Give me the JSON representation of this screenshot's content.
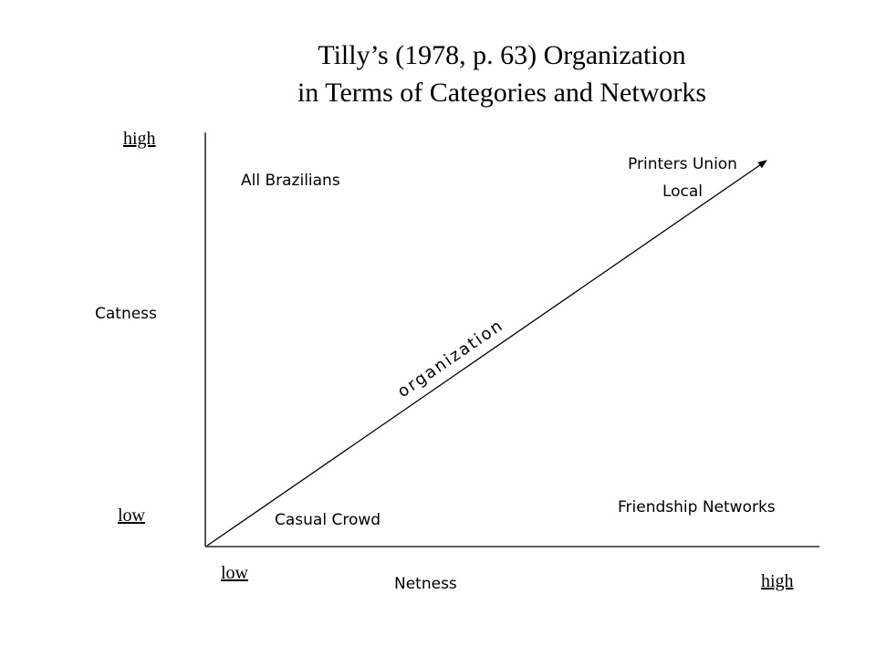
{
  "title": {
    "line1": "Tilly’s (1978, p. 63) Organization",
    "line2": "in Terms of Categories and Networks"
  },
  "y_axis": {
    "label": "Catness",
    "high": "high",
    "low": "low"
  },
  "x_axis": {
    "label": "Netness",
    "low": "low",
    "high": "high"
  },
  "quadrants": {
    "top_left": "All Brazilians",
    "top_right_line1": "Printers Union",
    "top_right_line2": "Local",
    "bottom_left": "Casual Crowd",
    "bottom_right": "Friendship Networks"
  },
  "arrow_label": "organization"
}
